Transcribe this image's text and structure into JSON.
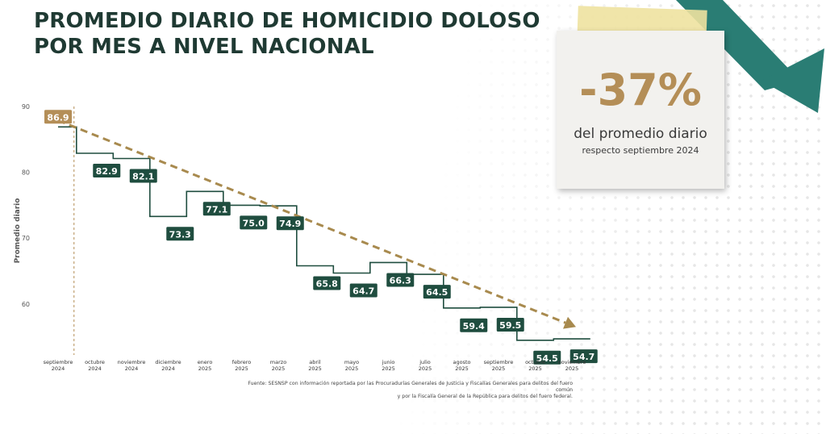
{
  "title": {
    "line1": "PROMEDIO DIARIO DE HOMICIDIO DOLOSO",
    "line2": "POR MES A NIVEL NACIONAL"
  },
  "highlight": {
    "value": "-37%",
    "line1": "del promedio diario",
    "line2": "respecto septiembre 2024"
  },
  "source": {
    "line1": "Fuente: SESNSP con información reportada por las Procuradurías Generales de Justicia y Fiscalías Generales para delitos del fuero común",
    "line2": "y por la Fiscalía General de la República para delitos del fuero federal."
  },
  "colors": {
    "title": "#1f3a33",
    "step_line": "#1f4d3f",
    "label_bg": "#1f4d3f",
    "first_label_bg": "#b48e57",
    "trend": "#a88a4e",
    "highlight": "#b48e57",
    "arrow": "#2a7d74"
  },
  "icons": {
    "decorative_arrow": "down-arrow-icon"
  },
  "chart_data": {
    "type": "line",
    "step": true,
    "ylabel": "Promedio diario",
    "xlabel": "",
    "ylim": [
      53,
      90
    ],
    "yticks": [
      60,
      70,
      80,
      90
    ],
    "grid": false,
    "categories": [
      {
        "month": "septiembre",
        "year": "2024"
      },
      {
        "month": "octubre",
        "year": "2024"
      },
      {
        "month": "noviembre",
        "year": "2024"
      },
      {
        "month": "diciembre",
        "year": "2024"
      },
      {
        "month": "enero",
        "year": "2025"
      },
      {
        "month": "febrero",
        "year": "2025"
      },
      {
        "month": "marzo",
        "year": "2025"
      },
      {
        "month": "abril",
        "year": "2025"
      },
      {
        "month": "mayo",
        "year": "2025"
      },
      {
        "month": "junio",
        "year": "2025"
      },
      {
        "month": "julio",
        "year": "2025"
      },
      {
        "month": "agosto",
        "year": "2025"
      },
      {
        "month": "septiembre",
        "year": "2025"
      },
      {
        "month": "octubre",
        "year": "2025"
      },
      {
        "month": "noviembre",
        "year": "2025"
      }
    ],
    "values": [
      86.9,
      82.9,
      82.1,
      73.3,
      77.1,
      75.0,
      74.9,
      65.8,
      64.7,
      66.3,
      64.5,
      59.4,
      59.5,
      54.5,
      54.7
    ],
    "labels": [
      "86.9",
      "82.9",
      "82.1",
      "73.3",
      "77.1",
      "75.0",
      "74.9",
      "65.8",
      "64.7",
      "66.3",
      "64.5",
      "59.4",
      "59.5",
      "54.5",
      "54.7"
    ],
    "trend": {
      "from": 86.9,
      "to": 54.7,
      "style": "dashed-arrow"
    },
    "reference_line": {
      "category_index": 0,
      "style": "dashed-vertical"
    }
  }
}
